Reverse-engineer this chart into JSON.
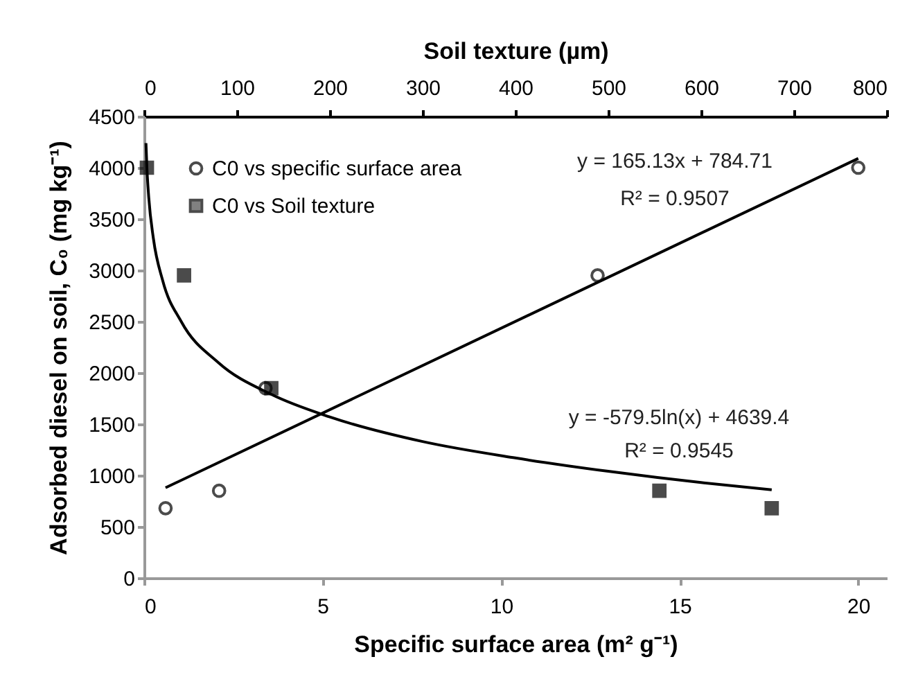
{
  "chart_data": {
    "type": "scatter",
    "xlabel": "Specific surface area (m² g⁻¹)",
    "x2label": "Soil texture (µm)",
    "ylabel": "Adsorbed diesel on soil, C₀ (mg kg⁻¹)",
    "xlim": [
      0,
      20.8
    ],
    "xticks": [
      0,
      5,
      10,
      15,
      20
    ],
    "x2lim": [
      0,
      800
    ],
    "x2ticks": [
      0,
      100,
      200,
      300,
      400,
      500,
      600,
      700,
      800
    ],
    "ylim": [
      0,
      4500
    ],
    "yticks": [
      0,
      500,
      1000,
      1500,
      2000,
      2500,
      3000,
      3500,
      4000,
      4500
    ],
    "grid": false,
    "legend": "top left",
    "series": [
      {
        "name": "C0 vs specific surface area",
        "color": "#000000",
        "marker": "circle",
        "x": [
          0.6,
          2.1,
          3.4,
          12.7,
          20
        ],
        "values": [
          680,
          850,
          1850,
          2950,
          4000
        ]
      },
      {
        "name": "C0 vs Soil texture",
        "color": "#000000",
        "marker": "square",
        "axis": "x2",
        "x": [
          3,
          43,
          137,
          555,
          676
        ],
        "values": [
          4000,
          2950,
          1850,
          850,
          680
        ]
      },
      {
        "type": "line",
        "color": "#000000",
        "x": [
          0.6,
          20
        ],
        "values": [
          880,
          4090
        ]
      },
      {
        "type": "line",
        "color": "#000000",
        "axis": "x2",
        "x": [
          2,
          3,
          5,
          10,
          20,
          40,
          80,
          137,
          200,
          300,
          400,
          500,
          600,
          676
        ],
        "values": [
          4240,
          4000,
          3710,
          3310,
          2900,
          2500,
          2100,
          1790,
          1570,
          1330,
          1170,
          1040,
          930,
          860
        ]
      }
    ],
    "annotations": [
      "y = 165.13x + 784.71",
      "R² = 0.9507",
      "y = -579.5ln(x) + 4639.4",
      "R² = 0.9545"
    ]
  }
}
